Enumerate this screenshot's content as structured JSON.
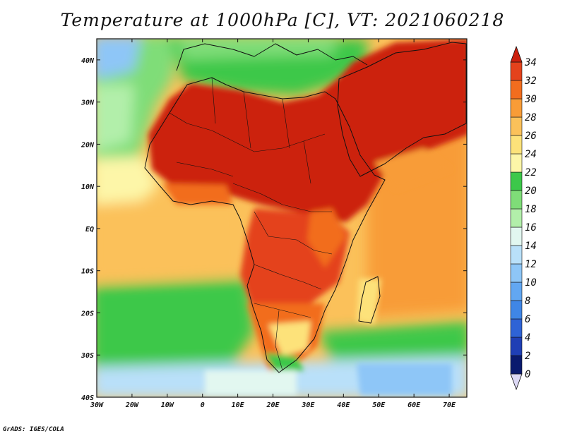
{
  "title": "Temperature at 1000hPa [C], VT: 2021060218",
  "footer": "GrADS: IGES/COLA",
  "map": {
    "projection": "lat-lon",
    "lon_range": [
      -30,
      75
    ],
    "lat_range": [
      -40,
      45
    ],
    "lon_ticks": [
      {
        "value": -30,
        "label": "30W"
      },
      {
        "value": -20,
        "label": "20W"
      },
      {
        "value": -10,
        "label": "10W"
      },
      {
        "value": 0,
        "label": "0"
      },
      {
        "value": 10,
        "label": "10E"
      },
      {
        "value": 20,
        "label": "20E"
      },
      {
        "value": 30,
        "label": "30E"
      },
      {
        "value": 40,
        "label": "40E"
      },
      {
        "value": 50,
        "label": "50E"
      },
      {
        "value": 60,
        "label": "60E"
      },
      {
        "value": 70,
        "label": "70E"
      }
    ],
    "lat_ticks": [
      {
        "value": 40,
        "label": "40N"
      },
      {
        "value": 30,
        "label": "30N"
      },
      {
        "value": 20,
        "label": "20N"
      },
      {
        "value": 10,
        "label": "10N"
      },
      {
        "value": 0,
        "label": "EQ"
      },
      {
        "value": -10,
        "label": "10S"
      },
      {
        "value": -20,
        "label": "20S"
      },
      {
        "value": -30,
        "label": "30S"
      },
      {
        "value": -40,
        "label": "40S"
      }
    ],
    "grid": false,
    "variable": "temperature_1000hPa",
    "units": "C"
  },
  "colorbar": {
    "orientation": "vertical",
    "position": "right",
    "levels": [
      0,
      2,
      4,
      6,
      8,
      10,
      12,
      14,
      16,
      18,
      20,
      22,
      24,
      26,
      28,
      30,
      32,
      34
    ],
    "colors": [
      "#0a1a6e",
      "#1f3fb5",
      "#2e63d6",
      "#3f86e6",
      "#62a7f2",
      "#8ec6f7",
      "#b9e0f9",
      "#e2f7f0",
      "#b2efaa",
      "#7fdd78",
      "#3cc84a",
      "#fdf6a8",
      "#fde27a",
      "#fbc15a",
      "#f89c37",
      "#f26d1e",
      "#e4421c",
      "#cc200e"
    ],
    "extend": "both"
  }
}
